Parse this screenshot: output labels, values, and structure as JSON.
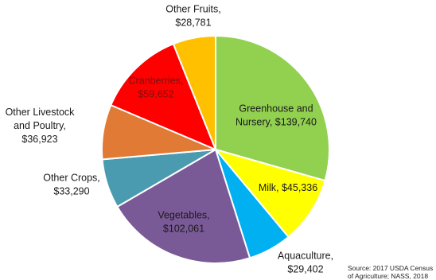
{
  "chart_data": {
    "type": "pie",
    "slices": [
      {
        "name": "Greenhouse and Nursery",
        "label_lines": [
          "Greenhouse and",
          "Nursery, $139,740"
        ],
        "value": 139740,
        "color": "#92d050",
        "label_color": "#1a1a1a",
        "label_pos": "inside"
      },
      {
        "name": "Milk",
        "label_lines": [
          "Milk, $45,336"
        ],
        "value": 45336,
        "color": "#ffff00",
        "label_color": "#1a1a1a",
        "label_pos": "inside"
      },
      {
        "name": "Aquaculture",
        "label_lines": [
          "Aquaculture,",
          "$29,402"
        ],
        "value": 29402,
        "color": "#00b0f0",
        "label_color": "#1a1a1a",
        "label_pos": "outside"
      },
      {
        "name": "Vegetables",
        "label_lines": [
          "Vegetables,",
          "$102,061"
        ],
        "value": 102061,
        "color": "#7a5a96",
        "label_color": "#1a1a1a",
        "label_pos": "inside"
      },
      {
        "name": "Other Crops",
        "label_lines": [
          "Other Crops,",
          "$33,290"
        ],
        "value": 33290,
        "color": "#4a9ab0",
        "label_color": "#1a1a1a",
        "label_pos": "outside"
      },
      {
        "name": "Other Livestock and Poultry",
        "label_lines": [
          "Other Livestock",
          "and Poultry,",
          "$36,923"
        ],
        "value": 36923,
        "color": "#e07a34",
        "label_color": "#1a1a1a",
        "label_pos": "outside"
      },
      {
        "name": "Cranberries",
        "label_lines": [
          "Cranberries,",
          "$59,652"
        ],
        "value": 59652,
        "color": "#ff0000",
        "label_color": "#7a1010",
        "label_pos": "inside"
      },
      {
        "name": "Other Fruits",
        "label_lines": [
          "Other Fruits,",
          "$28,781"
        ],
        "value": 28781,
        "color": "#ffc000",
        "label_color": "#1a1a1a",
        "label_pos": "outside"
      }
    ],
    "start_angle_deg": 0,
    "direction": "clockwise",
    "legend": "none"
  },
  "source_note": [
    "Source: 2017 USDA Census",
    "of Agriculture; NASS, 2018"
  ]
}
